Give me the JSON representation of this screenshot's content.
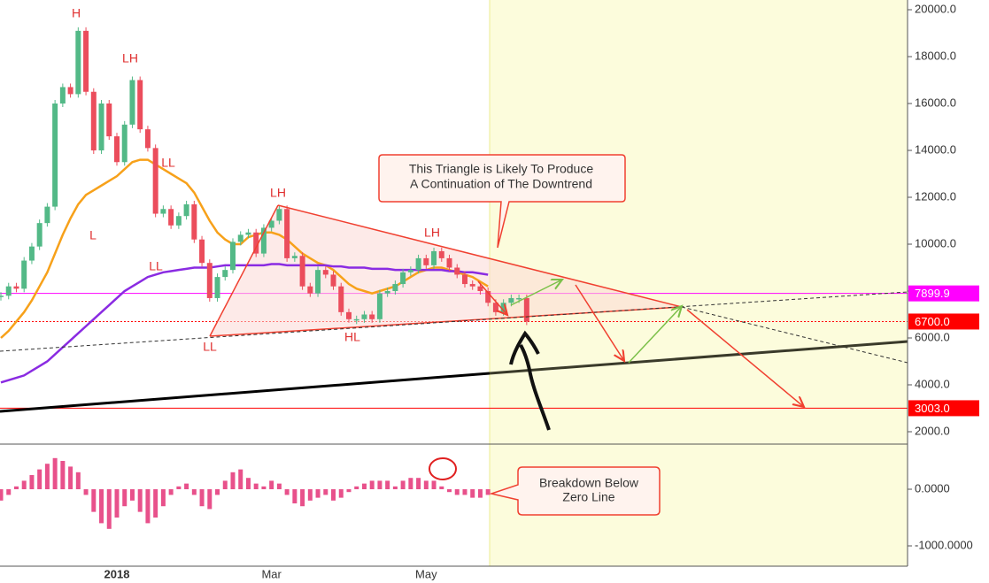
{
  "chart_data": {
    "type": "candlestick",
    "categories": [
      null,
      null,
      null,
      null,
      null,
      null,
      null,
      null,
      null,
      null,
      null,
      null,
      null,
      null,
      null,
      "2018",
      null,
      null,
      null,
      null,
      null,
      null,
      null,
      null,
      null,
      null,
      null,
      null,
      null,
      null,
      null,
      null,
      null,
      null,
      null,
      "Mar",
      null,
      null,
      null,
      null,
      null,
      null,
      null,
      null,
      null,
      null,
      null,
      null,
      null,
      null,
      null,
      null,
      null,
      null,
      null,
      "May",
      null,
      null,
      null,
      null,
      null,
      null,
      null,
      null,
      null,
      null,
      null,
      null,
      null
    ],
    "values": [
      7800,
      8200,
      8100,
      9300,
      9900,
      10900,
      11600,
      16000,
      16700,
      16400,
      19100,
      16500,
      14000,
      16000,
      14600,
      13500,
      15100,
      17000,
      14900,
      14100,
      11300,
      11500,
      10800,
      11200,
      11700,
      10200,
      9200,
      7700,
      8600,
      8900,
      10100,
      10400,
      10500,
      9600,
      10700,
      11000,
      11500,
      9400,
      9500,
      8200,
      7900,
      8900,
      8700,
      8200,
      7100,
      6800,
      6800,
      7000,
      6800,
      7900,
      8000,
      8300,
      8800,
      8900,
      9400,
      9100,
      9700,
      9400,
      9000,
      8700,
      8300,
      8200,
      8000,
      7500,
      7100,
      7500,
      7700,
      7700,
      6700
    ],
    "up_color": "#53b987",
    "down_color": "#eb4d5c",
    "series": [
      {
        "color": "#f7a11a",
        "values": [
          6000,
          6300,
          6700,
          7100,
          7600,
          8200,
          8800,
          9600,
          10400,
          11100,
          11700,
          12100,
          12300,
          12500,
          12700,
          12900,
          13200,
          13500,
          13600,
          13600,
          13400,
          13200,
          13000,
          12800,
          12600,
          12200,
          11600,
          11000,
          10500,
          10200,
          10000,
          10000,
          10300,
          10400,
          10500,
          10500,
          10400,
          10200,
          9900,
          9600,
          9400,
          9200,
          9100,
          8900,
          8600,
          8300,
          8100,
          8000,
          7900,
          8000,
          8100,
          8200,
          8400,
          8600,
          8800,
          8900,
          9000,
          9000,
          8900,
          8800,
          8700,
          8600,
          8400,
          8200,
          null,
          null,
          null,
          null,
          null
        ]
      },
      {
        "color": "#8a2be2",
        "values": [
          4100,
          4200,
          4300,
          4400,
          4600,
          4800,
          5000,
          5300,
          5600,
          5900,
          6200,
          6500,
          6800,
          7100,
          7400,
          7700,
          8000,
          8200,
          8400,
          8600,
          8700,
          8800,
          8850,
          8900,
          8950,
          9000,
          9000,
          9000,
          9050,
          9100,
          9100,
          9100,
          9100,
          9100,
          9100,
          9150,
          9150,
          9100,
          9100,
          9100,
          9100,
          9100,
          9100,
          9050,
          9050,
          9000,
          9000,
          9000,
          8950,
          8950,
          8950,
          8900,
          8900,
          8900,
          8900,
          8900,
          8900,
          8900,
          8850,
          8850,
          8800,
          8800,
          8750,
          8700,
          null,
          null,
          null,
          null,
          null
        ]
      }
    ],
    "ylim": [
      1472,
      20415
    ],
    "yticks": [
      {
        "value": 2000,
        "label": "2000.0"
      },
      {
        "value": 4000,
        "label": "4000.0"
      },
      {
        "value": 6000,
        "label": "6000.0"
      },
      {
        "value": 8000,
        "label": "8000.0"
      },
      {
        "value": 10000,
        "label": "10000.0"
      },
      {
        "value": 12000,
        "label": "12000.0"
      },
      {
        "value": 14000,
        "label": "14000.0"
      },
      {
        "value": 16000,
        "label": "16000.0"
      },
      {
        "value": 18000,
        "label": "18000.0"
      },
      {
        "value": 20000,
        "label": "20000.0"
      }
    ],
    "price_lines": [
      {
        "value": 7899.9,
        "label": "7899.9",
        "color": "#ff00ff"
      },
      {
        "value": 6700,
        "label": "6700.0",
        "color": "#ff0000"
      },
      {
        "value": 3003,
        "label": "3003.0",
        "color": "#ff0000"
      }
    ],
    "macd_histogram": {
      "color": "#e8518b",
      "values": [
        -200,
        -100,
        50,
        150,
        250,
        350,
        450,
        550,
        500,
        400,
        300,
        -100,
        -400,
        -600,
        -700,
        -500,
        -300,
        -200,
        -400,
        -600,
        -500,
        -300,
        -100,
        50,
        100,
        -100,
        -300,
        -350,
        -100,
        150,
        300,
        350,
        200,
        100,
        50,
        150,
        100,
        -100,
        -250,
        -300,
        -200,
        -150,
        -100,
        -200,
        -150,
        -50,
        50,
        100,
        150,
        150,
        150,
        50,
        150,
        200,
        200,
        150,
        150,
        50,
        -50,
        -100,
        -100,
        -150,
        -150,
        -100,
        null,
        null,
        null,
        null,
        null
      ]
    },
    "y2lim": [
      -1359,
      797
    ],
    "y2ticks": [
      {
        "value": 0,
        "label": "0.0000"
      },
      {
        "value": -1000,
        "label": "-1000.0000"
      }
    ],
    "annotations": [
      "H",
      "LH",
      "L",
      "LL",
      "LH",
      "LL",
      "LL",
      "LH",
      "HL",
      "LH"
    ],
    "callouts": [
      "This Triangle is Likely To Produce",
      "A Continuation of The Downtrend",
      "Breakdown Below",
      "Zero Line"
    ]
  }
}
